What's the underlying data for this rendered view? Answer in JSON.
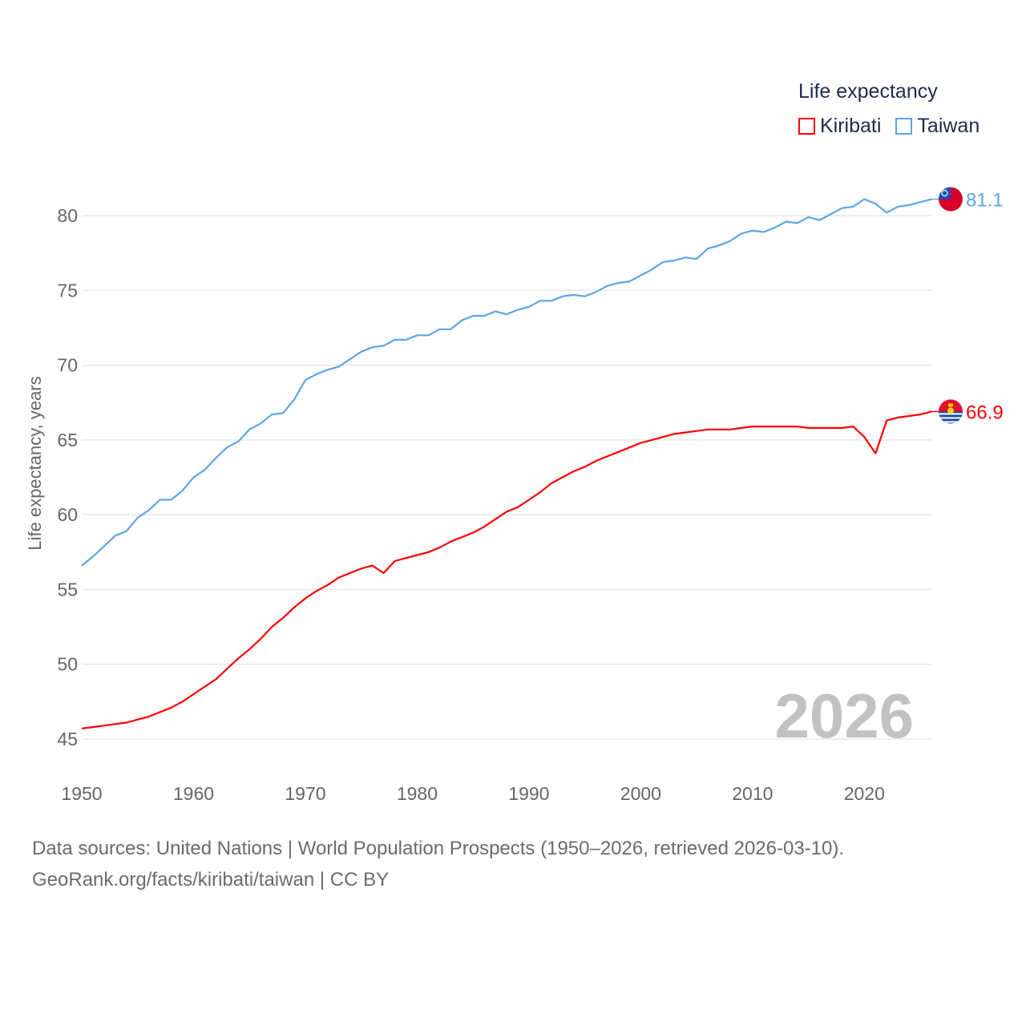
{
  "chart_data": {
    "type": "line",
    "title": "",
    "xlabel": "",
    "ylabel": "Life expectancy, years",
    "xlim": [
      1950,
      2026
    ],
    "ylim": [
      45,
      82
    ],
    "yticks": [
      45,
      50,
      55,
      60,
      65,
      70,
      75,
      80
    ],
    "xticks": [
      1950,
      1960,
      1970,
      1980,
      1990,
      2000,
      2010,
      2020
    ],
    "grid": true,
    "legend_title": "Life expectancy",
    "legend_position": "top-right",
    "year_label": "2026",
    "x_start": 1950,
    "series": [
      {
        "name": "Kiribati",
        "color": "#ff0000",
        "end_label": "66.9",
        "values": [
          45.7,
          45.8,
          45.9,
          46.0,
          46.1,
          46.3,
          46.5,
          46.8,
          47.1,
          47.5,
          48.0,
          48.5,
          49.0,
          49.7,
          50.4,
          51.0,
          51.7,
          52.5,
          53.1,
          53.8,
          54.4,
          54.9,
          55.3,
          55.8,
          56.1,
          56.4,
          56.6,
          56.1,
          56.9,
          57.1,
          57.3,
          57.5,
          57.8,
          58.2,
          58.5,
          58.8,
          59.2,
          59.7,
          60.2,
          60.5,
          61.0,
          61.5,
          62.1,
          62.5,
          62.9,
          63.2,
          63.6,
          63.9,
          64.2,
          64.5,
          64.8,
          65.0,
          65.2,
          65.4,
          65.5,
          65.6,
          65.7,
          65.7,
          65.7,
          65.8,
          65.9,
          65.9,
          65.9,
          65.9,
          65.9,
          65.8,
          65.8,
          65.8,
          65.8,
          65.9,
          65.2,
          64.1,
          66.3,
          66.5,
          66.6,
          66.7,
          66.9
        ]
      },
      {
        "name": "Taiwan",
        "color": "#5ea4ea",
        "end_label": "81.1",
        "values": [
          56.6,
          57.2,
          57.9,
          58.6,
          58.9,
          59.8,
          60.3,
          61.0,
          61.0,
          61.6,
          62.5,
          63.0,
          63.8,
          64.5,
          64.9,
          65.7,
          66.1,
          66.7,
          66.8,
          67.7,
          69.0,
          69.4,
          69.7,
          69.9,
          70.4,
          70.9,
          71.2,
          71.3,
          71.7,
          71.7,
          72.0,
          72.0,
          72.4,
          72.4,
          73.0,
          73.3,
          73.3,
          73.6,
          73.4,
          73.7,
          73.9,
          74.3,
          74.3,
          74.6,
          74.7,
          74.6,
          74.9,
          75.3,
          75.5,
          75.6,
          76.0,
          76.4,
          76.9,
          77.0,
          77.2,
          77.1,
          77.8,
          78.0,
          78.3,
          78.8,
          79.0,
          78.9,
          79.2,
          79.6,
          79.5,
          79.9,
          79.7,
          80.1,
          80.5,
          80.6,
          81.1,
          80.8,
          80.2,
          80.6,
          80.7,
          80.9,
          81.1
        ]
      }
    ]
  },
  "footer": {
    "line1": "Data sources: United Nations | World Population Prospects (1950–2026, retrieved 2026-03-10).",
    "line2": "GeoRank.org/facts/kiribati/taiwan | CC BY"
  }
}
